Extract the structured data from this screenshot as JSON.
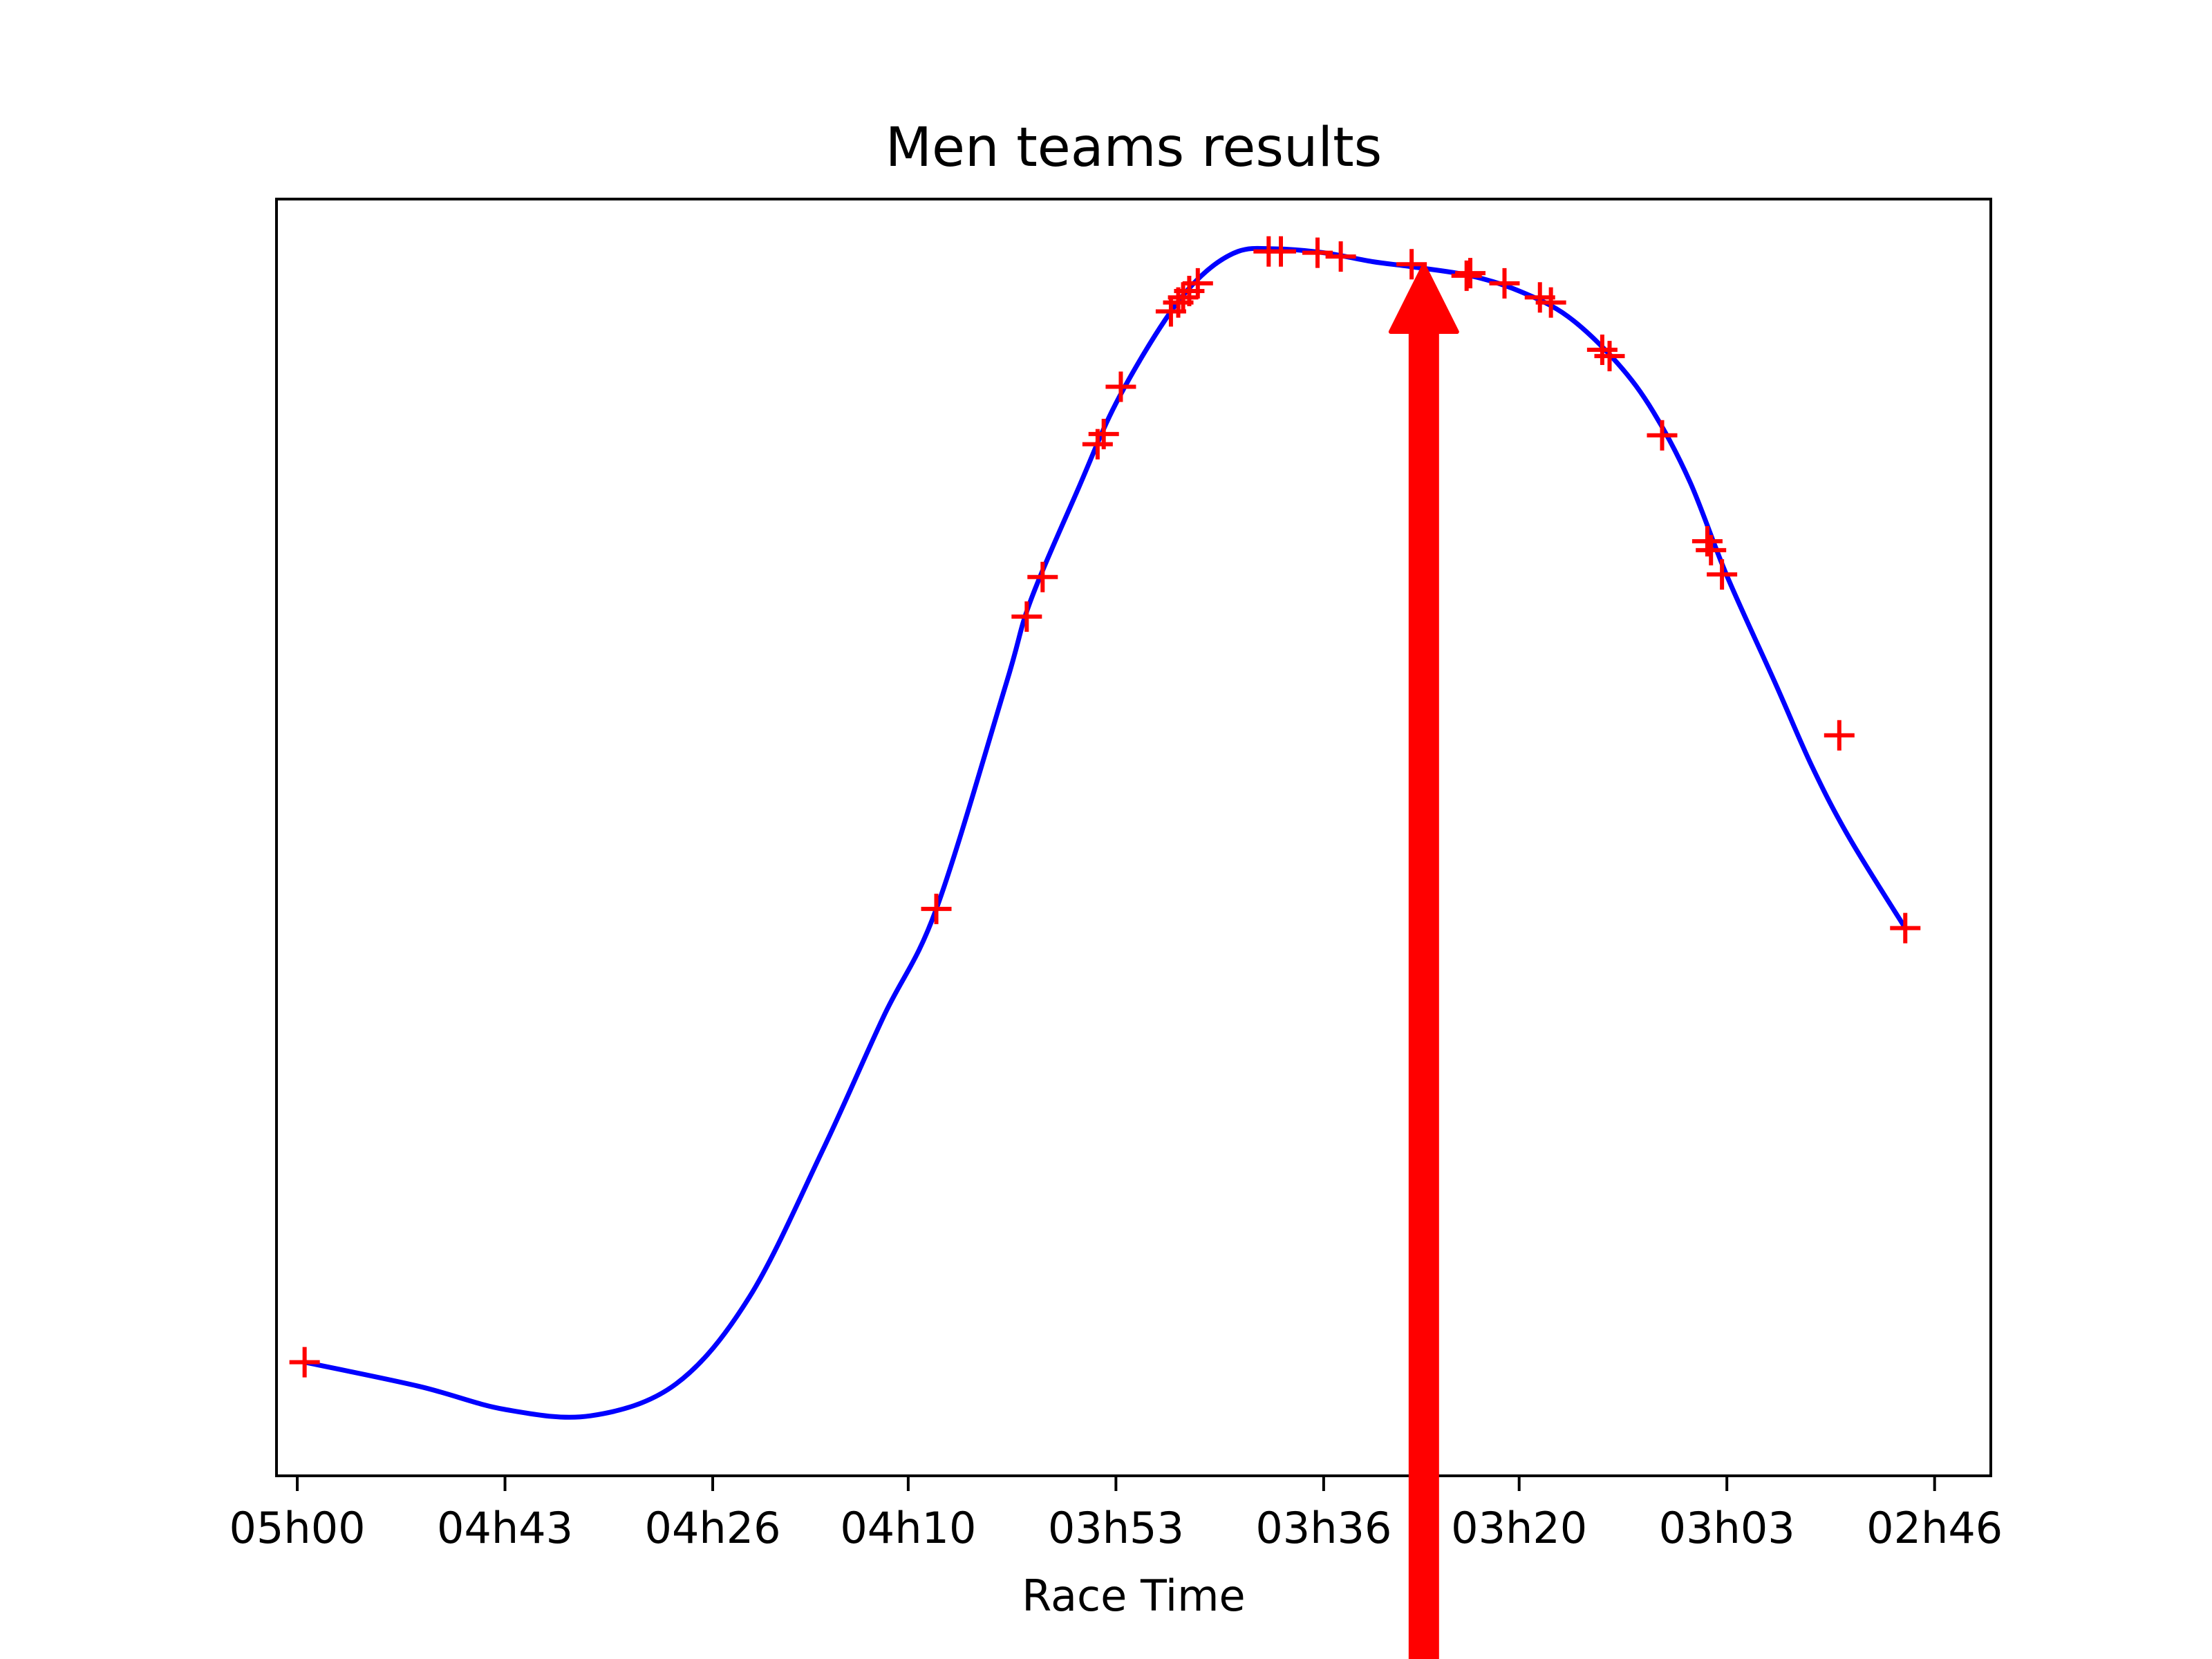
{
  "chart_data": {
    "type": "line",
    "title": "Men teams results",
    "xlabel": "Race Time",
    "ylabel": "",
    "x_axis_inverted": true,
    "x_unit": "minutes of race time",
    "xlim": [
      301.7,
      161.4
    ],
    "x_ticks": [
      {
        "value": 300,
        "label": "05h00"
      },
      {
        "value": 283,
        "label": "04h43"
      },
      {
        "value": 266,
        "label": "04h26"
      },
      {
        "value": 250,
        "label": "04h10"
      },
      {
        "value": 233,
        "label": "03h53"
      },
      {
        "value": 216,
        "label": "03h36"
      },
      {
        "value": 200,
        "label": "03h20"
      },
      {
        "value": 183,
        "label": "03h03"
      },
      {
        "value": 166,
        "label": "02h46"
      }
    ],
    "y_ticks_shown": false,
    "ylim": [
      0,
      100
    ],
    "series": [
      {
        "kind": "markers",
        "marker": "+",
        "color": "#ff0000",
        "points": [
          {
            "x": 299.4,
            "y": 8.9
          },
          {
            "x": 247.7,
            "y": 44.4
          },
          {
            "x": 240.3,
            "y": 67.3
          },
          {
            "x": 239.0,
            "y": 70.4
          },
          {
            "x": 234.5,
            "y": 80.8
          },
          {
            "x": 234.0,
            "y": 81.6
          },
          {
            "x": 232.6,
            "y": 85.3
          },
          {
            "x": 228.5,
            "y": 91.2
          },
          {
            "x": 227.9,
            "y": 91.9
          },
          {
            "x": 227.5,
            "y": 92.3
          },
          {
            "x": 227.0,
            "y": 92.8
          },
          {
            "x": 226.3,
            "y": 93.4
          },
          {
            "x": 220.5,
            "y": 95.9
          },
          {
            "x": 219.5,
            "y": 95.9
          },
          {
            "x": 216.5,
            "y": 95.8
          },
          {
            "x": 214.6,
            "y": 95.5
          },
          {
            "x": 208.8,
            "y": 94.9
          },
          {
            "x": 204.3,
            "y": 94.0
          },
          {
            "x": 204.0,
            "y": 94.2
          },
          {
            "x": 201.2,
            "y": 93.4
          },
          {
            "x": 198.3,
            "y": 92.3
          },
          {
            "x": 197.4,
            "y": 91.9
          },
          {
            "x": 193.2,
            "y": 88.2
          },
          {
            "x": 192.6,
            "y": 87.7
          },
          {
            "x": 188.3,
            "y": 81.5
          },
          {
            "x": 184.6,
            "y": 73.2
          },
          {
            "x": 184.3,
            "y": 72.5
          },
          {
            "x": 183.4,
            "y": 70.6
          },
          {
            "x": 173.8,
            "y": 58.0
          },
          {
            "x": 168.4,
            "y": 42.9
          }
        ]
      },
      {
        "kind": "line",
        "color": "#0000ff",
        "points": [
          {
            "x": 299.4,
            "y": 8.9
          },
          {
            "x": 290.0,
            "y": 7.0
          },
          {
            "x": 283.0,
            "y": 5.2
          },
          {
            "x": 276.0,
            "y": 4.7
          },
          {
            "x": 269.0,
            "y": 7.2
          },
          {
            "x": 263.0,
            "y": 14.0
          },
          {
            "x": 257.0,
            "y": 25.5
          },
          {
            "x": 252.0,
            "y": 36.0
          },
          {
            "x": 247.7,
            "y": 44.4
          },
          {
            "x": 242.0,
            "y": 62.0
          },
          {
            "x": 240.0,
            "y": 68.5
          },
          {
            "x": 236.0,
            "y": 77.5
          },
          {
            "x": 233.0,
            "y": 84.0
          },
          {
            "x": 229.0,
            "y": 90.5
          },
          {
            "x": 226.0,
            "y": 94.0
          },
          {
            "x": 223.0,
            "y": 95.9
          },
          {
            "x": 220.0,
            "y": 96.1
          },
          {
            "x": 216.0,
            "y": 95.8
          },
          {
            "x": 212.0,
            "y": 95.1
          },
          {
            "x": 208.8,
            "y": 94.7
          },
          {
            "x": 204.0,
            "y": 94.0
          },
          {
            "x": 200.0,
            "y": 92.8
          },
          {
            "x": 196.0,
            "y": 90.8
          },
          {
            "x": 192.0,
            "y": 87.2
          },
          {
            "x": 189.0,
            "y": 83.3
          },
          {
            "x": 186.0,
            "y": 77.8
          },
          {
            "x": 183.0,
            "y": 70.5
          },
          {
            "x": 179.0,
            "y": 62.0
          },
          {
            "x": 176.0,
            "y": 55.5
          },
          {
            "x": 173.0,
            "y": 50.0
          },
          {
            "x": 168.4,
            "y": 42.9
          }
        ]
      }
    ],
    "annotations": [
      {
        "type": "arrow",
        "color": "#ff0000",
        "x": 207.8,
        "y_tip": 94.8,
        "direction": "up",
        "extends_below_axis": true
      }
    ]
  }
}
